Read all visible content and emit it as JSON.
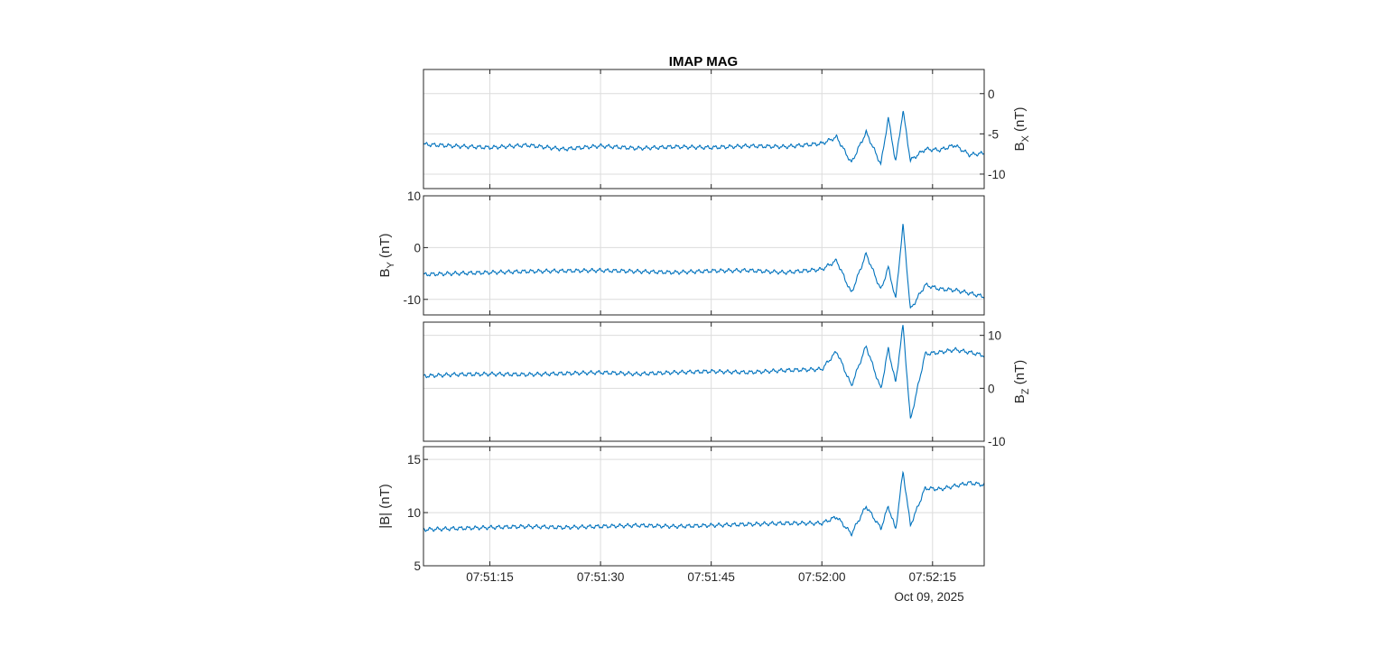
{
  "colors": {
    "line": "#0072BD",
    "grid": "#dcdcdc",
    "axis": "#262626",
    "background": "#ffffff"
  },
  "chart_data": {
    "type": "line",
    "title": "IMAP MAG",
    "x_range": [
      "07:51:06",
      "07:52:22"
    ],
    "x_ticks": [
      "07:51:15",
      "07:51:30",
      "07:51:45",
      "07:52:00",
      "07:52:15"
    ],
    "x_date_label": "Oct 09, 2025",
    "grid": true,
    "panels": [
      {
        "component": "Bx",
        "ylabel_main": "B",
        "ylabel_sub": "X",
        "ylabel_unit": " (nT)",
        "y_axis_side": "right",
        "ylim": [
          -11.8,
          3.0
        ],
        "y_ticks": [
          0,
          -5,
          -10
        ],
        "y_tick_labels": [
          "0",
          "-5",
          "-10"
        ],
        "series": [
          {
            "x": [
              "07:51:06",
              "07:51:10",
              "07:51:15",
              "07:51:20",
              "07:51:25",
              "07:51:30",
              "07:51:35",
              "07:51:40",
              "07:51:45",
              "07:51:50",
              "07:51:55",
              "07:52:00",
              "07:52:02",
              "07:52:04",
              "07:52:06",
              "07:52:08",
              "07:52:09",
              "07:52:10",
              "07:52:11",
              "07:52:12",
              "07:52:14",
              "07:52:16",
              "07:52:18",
              "07:52:20",
              "07:52:22"
            ],
            "values": [
              -6.3,
              -6.5,
              -6.7,
              -6.4,
              -6.9,
              -6.5,
              -6.8,
              -6.6,
              -6.7,
              -6.5,
              -6.6,
              -6.2,
              -5.4,
              -8.6,
              -4.8,
              -8.8,
              -3.0,
              -8.5,
              -2.1,
              -8.3,
              -6.9,
              -7.0,
              -6.4,
              -7.6,
              -7.4
            ]
          }
        ]
      },
      {
        "component": "By",
        "ylabel_main": "B",
        "ylabel_sub": "Y",
        "ylabel_unit": " (nT)",
        "y_axis_side": "left",
        "ylim": [
          -13,
          10
        ],
        "y_ticks": [
          10,
          0,
          -10
        ],
        "y_tick_labels": [
          "10",
          "0",
          "-10"
        ],
        "series": [
          {
            "x": [
              "07:51:06",
              "07:51:10",
              "07:51:15",
              "07:51:20",
              "07:51:25",
              "07:51:30",
              "07:51:35",
              "07:51:40",
              "07:51:45",
              "07:51:50",
              "07:51:55",
              "07:52:00",
              "07:52:02",
              "07:52:04",
              "07:52:06",
              "07:52:08",
              "07:52:09",
              "07:52:10",
              "07:52:11",
              "07:52:12",
              "07:52:14",
              "07:52:16",
              "07:52:18",
              "07:52:20",
              "07:52:22"
            ],
            "values": [
              -5.2,
              -5.0,
              -4.8,
              -4.6,
              -4.5,
              -4.4,
              -4.6,
              -4.8,
              -4.5,
              -4.4,
              -4.8,
              -4.2,
              -2.5,
              -8.8,
              -1.2,
              -8.2,
              -3.8,
              -10.0,
              4.5,
              -12.0,
              -7.2,
              -8.0,
              -8.2,
              -8.8,
              -9.5
            ]
          }
        ]
      },
      {
        "component": "Bz",
        "ylabel_main": "B",
        "ylabel_sub": "Z",
        "ylabel_unit": " (nT)",
        "y_axis_side": "right",
        "ylim": [
          -10,
          12.5
        ],
        "y_ticks": [
          10,
          0,
          -10
        ],
        "y_tick_labels": [
          "10",
          "0",
          "-10"
        ],
        "series": [
          {
            "x": [
              "07:51:06",
              "07:51:10",
              "07:51:15",
              "07:51:20",
              "07:51:25",
              "07:51:30",
              "07:51:35",
              "07:51:40",
              "07:51:45",
              "07:51:50",
              "07:51:55",
              "07:52:00",
              "07:52:02",
              "07:52:04",
              "07:52:06",
              "07:52:08",
              "07:52:09",
              "07:52:10",
              "07:52:11",
              "07:52:12",
              "07:52:14",
              "07:52:16",
              "07:52:18",
              "07:52:20",
              "07:52:22"
            ],
            "values": [
              2.3,
              2.6,
              2.7,
              2.6,
              2.8,
              3.0,
              2.7,
              3.0,
              3.2,
              3.0,
              3.4,
              3.6,
              7.0,
              0.5,
              8.0,
              -0.2,
              7.5,
              1.0,
              12.0,
              -6.0,
              6.5,
              6.8,
              7.3,
              6.8,
              6.2
            ]
          }
        ]
      },
      {
        "component": "B",
        "ylabel_main": "|B|",
        "ylabel_sub": "",
        "ylabel_unit": " (nT)",
        "y_axis_side": "left",
        "ylim": [
          5,
          16.2
        ],
        "y_ticks": [
          15,
          10,
          5
        ],
        "y_tick_labels": [
          "15",
          "10",
          "5"
        ],
        "series": [
          {
            "x": [
              "07:51:06",
              "07:51:10",
              "07:51:15",
              "07:51:20",
              "07:51:25",
              "07:51:30",
              "07:51:35",
              "07:51:40",
              "07:51:45",
              "07:51:50",
              "07:51:55",
              "07:52:00",
              "07:52:02",
              "07:52:04",
              "07:52:06",
              "07:52:08",
              "07:52:09",
              "07:52:10",
              "07:52:11",
              "07:52:12",
              "07:52:14",
              "07:52:16",
              "07:52:18",
              "07:52:20",
              "07:52:22"
            ],
            "values": [
              8.4,
              8.5,
              8.6,
              8.7,
              8.6,
              8.7,
              8.8,
              8.7,
              8.8,
              8.9,
              9.0,
              9.0,
              9.6,
              8.0,
              10.6,
              8.5,
              10.6,
              8.4,
              13.9,
              8.8,
              12.3,
              12.2,
              12.5,
              12.8,
              12.6
            ]
          }
        ]
      }
    ]
  }
}
